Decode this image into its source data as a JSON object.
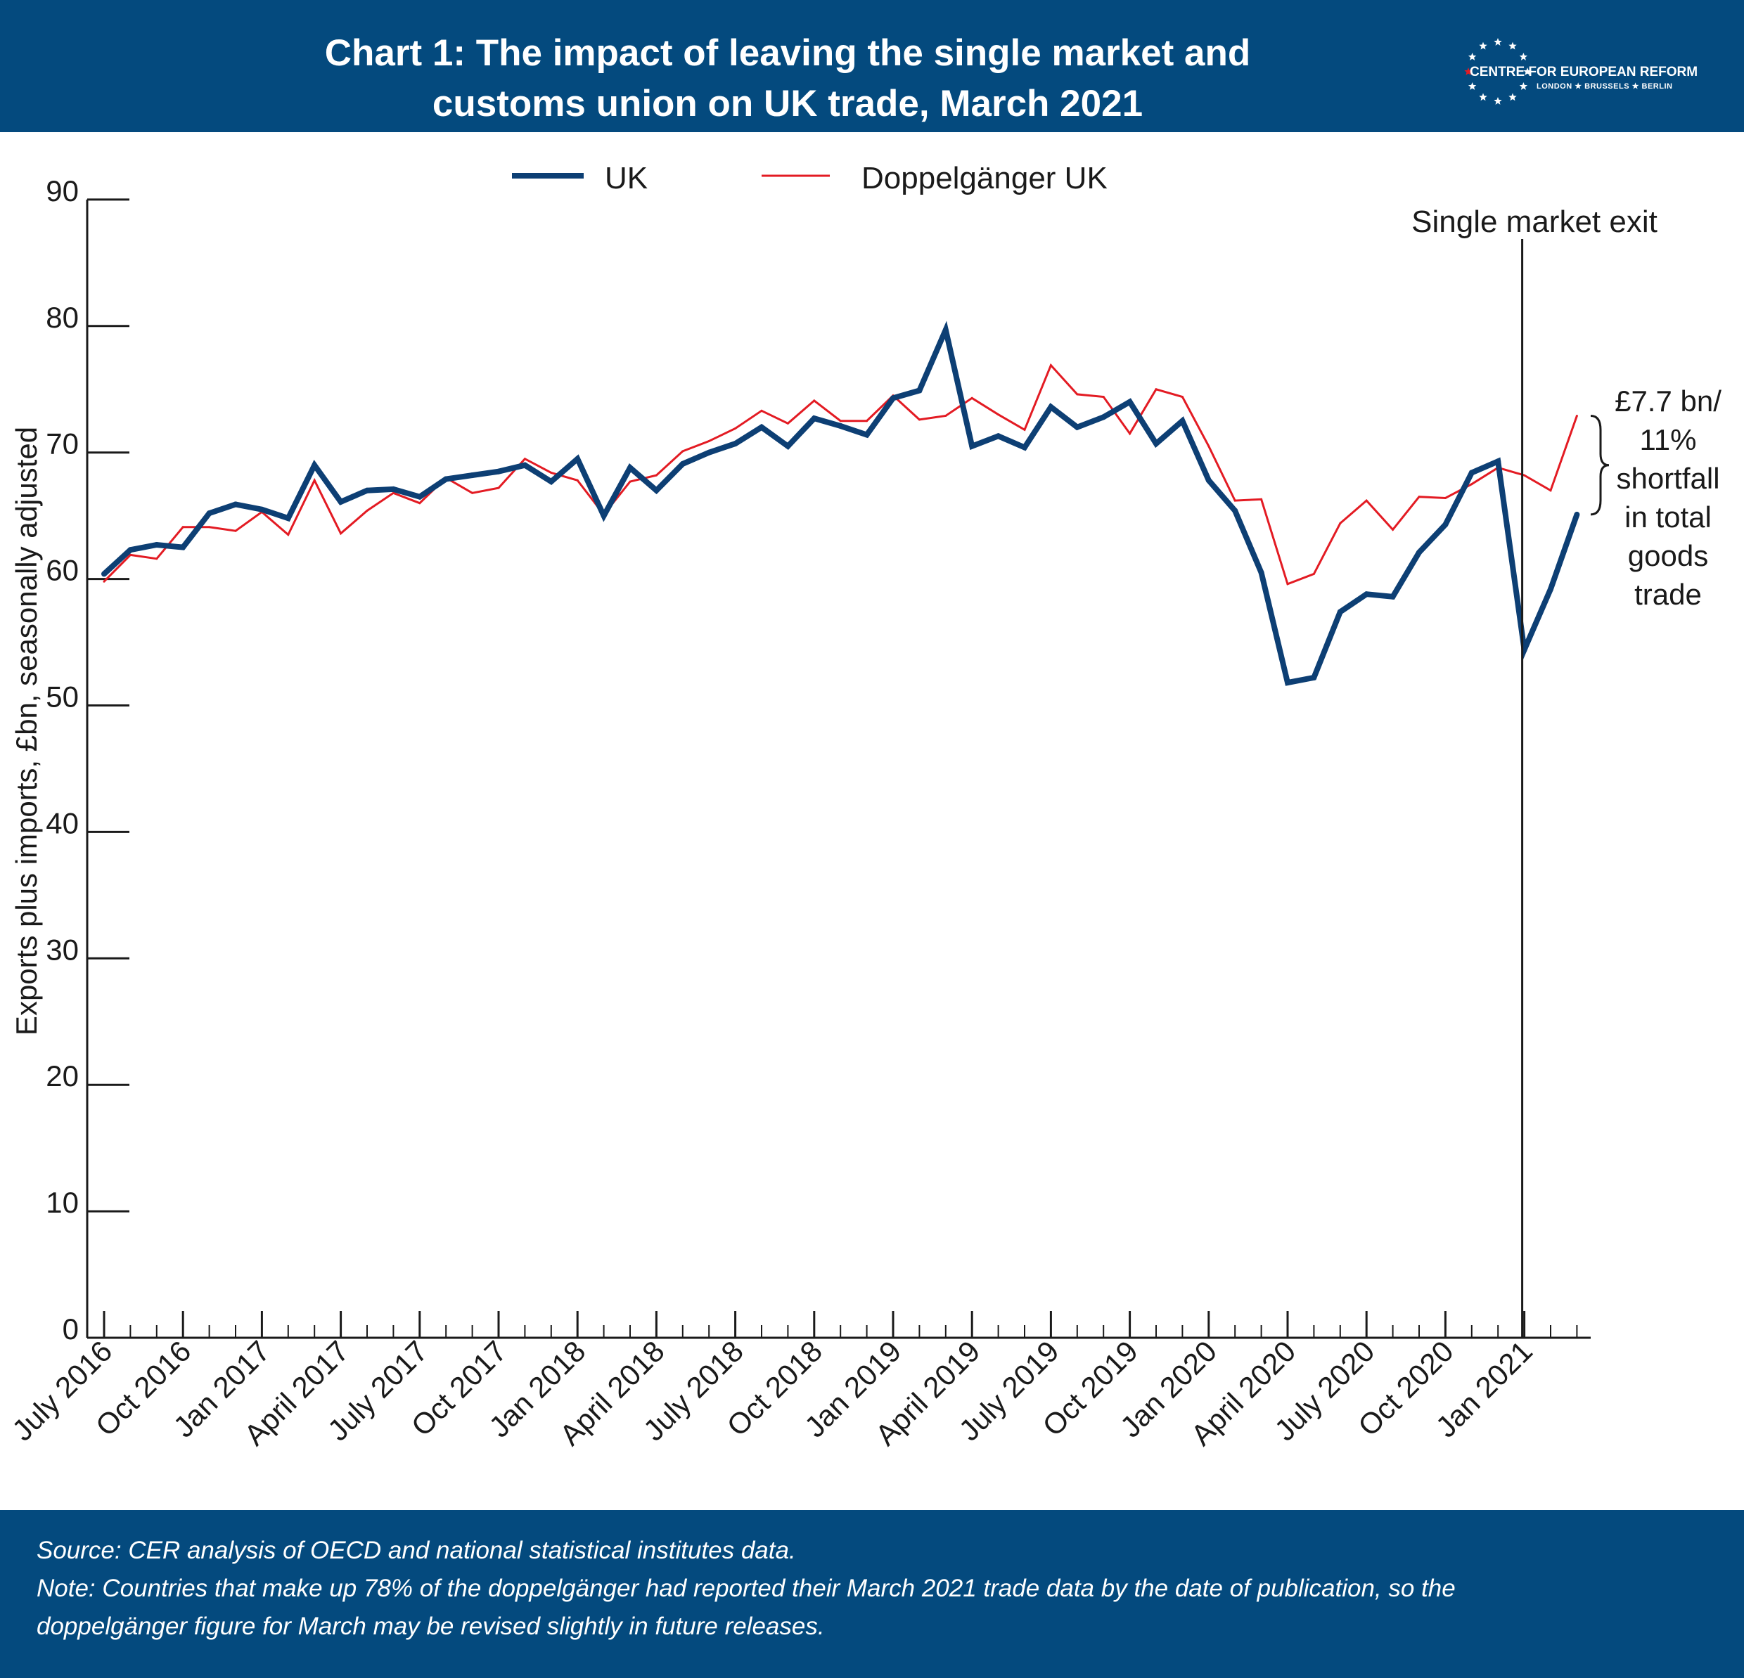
{
  "header": {
    "title_line1": "Chart 1: The impact of leaving the single market and",
    "title_line2": "customs union on UK trade, March 2021",
    "logo_name": "CENTRE FOR EUROPEAN REFORM",
    "logo_cities": "LONDON ★ BRUSSELS ★ BERLIN",
    "logo_icon": "eu-star-circle-icon"
  },
  "colors": {
    "header_bg": "#044a7e",
    "uk_line": "#0d3f74",
    "doppel_line": "#e31b23",
    "text": "#1a1a1a"
  },
  "chart_data": {
    "type": "line",
    "title": "Chart 1: The impact of leaving the single market and customs union on UK trade, March 2021",
    "ylabel": "Exports plus imports, £bn, seasonally adjusted",
    "xlabel": "",
    "ylim": [
      0,
      90
    ],
    "yticks": [
      0,
      10,
      20,
      30,
      40,
      50,
      60,
      70,
      80,
      90
    ],
    "xtick_labels": [
      "July 2016",
      "Oct 2016",
      "Jan 2017",
      "April 2017",
      "July 2017",
      "Oct 2017",
      "Jan 2018",
      "April 2018",
      "July 2018",
      "Oct 2018",
      "Jan 2019",
      "April 2019",
      "July 2019",
      "Oct 2019",
      "Jan 2020",
      "April 2020",
      "July 2020",
      "Oct 2020",
      "Jan 2021"
    ],
    "x_start": "July 2016",
    "x_end": "March 2021",
    "legend_position": "top",
    "grid": false,
    "series": [
      {
        "name": "UK",
        "color": "#0d3f74",
        "values": [
          60.4,
          62.3,
          62.7,
          62.5,
          65.2,
          65.9,
          65.5,
          64.8,
          69.0,
          66.1,
          67.0,
          67.1,
          66.5,
          67.9,
          68.2,
          68.5,
          69.0,
          67.7,
          69.5,
          65.0,
          68.8,
          67.0,
          69.1,
          70.0,
          70.7,
          72.0,
          70.5,
          72.7,
          72.1,
          71.4,
          74.3,
          74.9,
          79.7,
          70.5,
          71.3,
          70.4,
          73.6,
          72.0,
          72.8,
          74.0,
          70.7,
          72.5,
          67.8,
          65.4,
          60.5,
          51.8,
          52.2,
          57.4,
          58.8,
          58.6,
          62.1,
          64.3,
          68.4,
          69.3,
          54.4,
          59.2,
          65.1
        ]
      },
      {
        "name": "Doppelgänger UK",
        "color": "#e31b23",
        "values": [
          59.8,
          61.9,
          61.6,
          64.1,
          64.1,
          63.8,
          65.3,
          63.5,
          67.8,
          63.6,
          65.4,
          66.8,
          66.0,
          68.0,
          66.8,
          67.2,
          69.5,
          68.4,
          67.8,
          65.1,
          67.7,
          68.2,
          70.1,
          70.9,
          71.9,
          73.3,
          72.3,
          74.1,
          72.5,
          72.5,
          74.5,
          72.6,
          72.9,
          74.3,
          73.0,
          71.8,
          76.9,
          74.6,
          74.4,
          71.5,
          75.0,
          74.4,
          70.5,
          66.2,
          66.3,
          59.6,
          60.4,
          64.4,
          66.2,
          63.9,
          66.5,
          66.4,
          67.5,
          68.8,
          68.2,
          67.0,
          72.9
        ]
      }
    ],
    "annotations": {
      "exit_label": "Single market exit",
      "exit_index": 54,
      "shortfall_lines": [
        "£7.7 bn/",
        "11%",
        "shortfall",
        "in total",
        "goods",
        "trade"
      ]
    }
  },
  "footer": {
    "source": "Source: CER analysis of OECD and national statistical institutes data.",
    "note_line1": "Note: Countries that make up 78% of the doppelgänger had reported their March 2021 trade data by the date of publication, so the",
    "note_line2": "doppelgänger figure for March may be revised slightly in future releases."
  }
}
